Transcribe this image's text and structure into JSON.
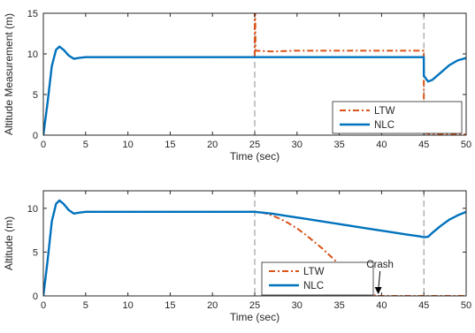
{
  "chart_data": [
    {
      "type": "line",
      "ylabel": "Altitude Measurement (m)",
      "xlabel": "Time (sec)",
      "xlim": [
        0,
        50
      ],
      "ylim": [
        0,
        15
      ],
      "xticks": [
        "0",
        "5",
        "10",
        "15",
        "20",
        "25",
        "30",
        "35",
        "40",
        "45",
        "50"
      ],
      "yticks": [
        "0",
        "5",
        "10",
        "15"
      ],
      "grid": false,
      "legend_position": "bottom-right",
      "vlines": [
        25,
        45
      ],
      "series": [
        {
          "name": "LTW",
          "style": "dash-dot",
          "color": "#D95319",
          "points": [
            [
              0,
              0
            ],
            [
              0.5,
              4
            ],
            [
              1,
              8.5
            ],
            [
              1.5,
              10.5
            ],
            [
              1.9,
              10.9
            ],
            [
              2.4,
              10.5
            ],
            [
              3,
              9.8
            ],
            [
              3.6,
              9.4
            ],
            [
              4.2,
              9.5
            ],
            [
              5,
              9.6
            ],
            [
              10,
              9.6
            ],
            [
              15,
              9.6
            ],
            [
              20,
              9.6
            ],
            [
              24.99,
              9.6
            ],
            [
              25,
              15
            ],
            [
              25.05,
              15
            ],
            [
              25.1,
              10.4
            ],
            [
              27,
              10.3
            ],
            [
              30,
              10.4
            ],
            [
              35,
              10.4
            ],
            [
              40,
              10.4
            ],
            [
              44.99,
              10.4
            ],
            [
              45,
              0.3
            ],
            [
              46,
              0.1
            ],
            [
              50,
              0.1
            ]
          ]
        },
        {
          "name": "NLC",
          "style": "solid",
          "color": "#0072BD",
          "points": [
            [
              0,
              0
            ],
            [
              0.5,
              4
            ],
            [
              1,
              8.5
            ],
            [
              1.5,
              10.5
            ],
            [
              1.9,
              10.9
            ],
            [
              2.4,
              10.5
            ],
            [
              3,
              9.8
            ],
            [
              3.6,
              9.4
            ],
            [
              4.2,
              9.5
            ],
            [
              5,
              9.6
            ],
            [
              10,
              9.6
            ],
            [
              15,
              9.6
            ],
            [
              20,
              9.6
            ],
            [
              25,
              9.6
            ],
            [
              30,
              9.6
            ],
            [
              35,
              9.6
            ],
            [
              40,
              9.6
            ],
            [
              44.99,
              9.6
            ],
            [
              45,
              7.3
            ],
            [
              45.5,
              6.6
            ],
            [
              46,
              6.8
            ],
            [
              47,
              7.7
            ],
            [
              48,
              8.6
            ],
            [
              49,
              9.2
            ],
            [
              50,
              9.5
            ]
          ]
        }
      ]
    },
    {
      "type": "line",
      "ylabel": "Altitude (m)",
      "xlabel": "Time (sec)",
      "xlim": [
        0,
        50
      ],
      "ylim": [
        0,
        12
      ],
      "xticks": [
        "0",
        "5",
        "10",
        "15",
        "20",
        "25",
        "30",
        "35",
        "40",
        "45",
        "50"
      ],
      "yticks": [
        "0",
        "5",
        "10"
      ],
      "grid": false,
      "legend_position": "bottom-center",
      "vlines": [
        25,
        45
      ],
      "annotation": {
        "text": "Crash",
        "x": 39.5,
        "y": 0
      },
      "series": [
        {
          "name": "LTW",
          "style": "dash-dot",
          "color": "#D95319",
          "points": [
            [
              0,
              0
            ],
            [
              0.5,
              4
            ],
            [
              1,
              8.5
            ],
            [
              1.5,
              10.5
            ],
            [
              1.9,
              10.9
            ],
            [
              2.4,
              10.5
            ],
            [
              3,
              9.8
            ],
            [
              3.6,
              9.4
            ],
            [
              4.2,
              9.5
            ],
            [
              5,
              9.6
            ],
            [
              10,
              9.6
            ],
            [
              15,
              9.6
            ],
            [
              20,
              9.6
            ],
            [
              25,
              9.6
            ],
            [
              26,
              9.5
            ],
            [
              27,
              9.2
            ],
            [
              28,
              8.8
            ],
            [
              29,
              8.3
            ],
            [
              30,
              7.7
            ],
            [
              31,
              7.0
            ],
            [
              32,
              6.2
            ],
            [
              33,
              5.4
            ],
            [
              34,
              4.5
            ],
            [
              35,
              3.6
            ],
            [
              36,
              2.7
            ],
            [
              37,
              1.8
            ],
            [
              38,
              0.9
            ],
            [
              39,
              0.1
            ],
            [
              39.5,
              0
            ],
            [
              42,
              0
            ],
            [
              45,
              0
            ],
            [
              50,
              0
            ]
          ]
        },
        {
          "name": "NLC",
          "style": "solid",
          "color": "#0072BD",
          "points": [
            [
              0,
              0
            ],
            [
              0.5,
              4
            ],
            [
              1,
              8.5
            ],
            [
              1.5,
              10.5
            ],
            [
              1.9,
              10.9
            ],
            [
              2.4,
              10.5
            ],
            [
              3,
              9.8
            ],
            [
              3.6,
              9.4
            ],
            [
              4.2,
              9.5
            ],
            [
              5,
              9.6
            ],
            [
              10,
              9.6
            ],
            [
              15,
              9.6
            ],
            [
              20,
              9.6
            ],
            [
              25,
              9.6
            ],
            [
              27,
              9.4
            ],
            [
              29,
              9.1
            ],
            [
              31,
              8.8
            ],
            [
              33,
              8.5
            ],
            [
              35,
              8.2
            ],
            [
              37,
              7.9
            ],
            [
              39,
              7.6
            ],
            [
              41,
              7.3
            ],
            [
              43,
              7.0
            ],
            [
              44.5,
              6.8
            ],
            [
              45,
              6.7
            ],
            [
              45.5,
              6.75
            ],
            [
              46,
              7.2
            ],
            [
              47,
              8.0
            ],
            [
              48,
              8.7
            ],
            [
              49,
              9.2
            ],
            [
              50,
              9.6
            ]
          ]
        }
      ]
    }
  ]
}
